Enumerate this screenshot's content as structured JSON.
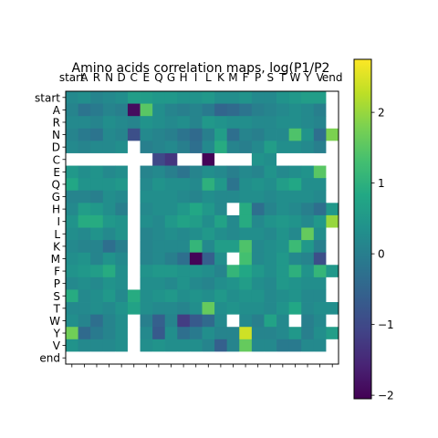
{
  "chart_data": {
    "type": "heatmap",
    "title": "Amino acids correlation maps, log(P1/P2",
    "row_labels": [
      "start",
      "A",
      "R",
      "N",
      "D",
      "C",
      "E",
      "Q",
      "G",
      "H",
      "I",
      "L",
      "K",
      "M",
      "F",
      "P",
      "S",
      "T",
      "W",
      "Y",
      "V",
      "end"
    ],
    "col_labels": [
      "start",
      "A",
      "R",
      "N",
      "D",
      "C",
      "E",
      "Q",
      "G",
      "H",
      "I",
      "L",
      "K",
      "M",
      "F",
      "P",
      "S",
      "T",
      "W",
      "Y",
      "V",
      "end"
    ],
    "colorbar": {
      "range": [
        -2.05,
        2.75
      ],
      "ticks": [
        -2,
        -1,
        0,
        1,
        2
      ],
      "tick_labels": [
        "−2",
        "−1",
        "0",
        "1",
        "2"
      ],
      "colormap": "viridis"
    },
    "missing_value_color": "#ffffff",
    "values": [
      [
        0.2,
        0.3,
        0.1,
        0.2,
        0.3,
        0.6,
        0.6,
        0.5,
        0.5,
        0.4,
        0.4,
        0.5,
        0.3,
        0.3,
        0.4,
        0.2,
        0.2,
        0.4,
        0.5,
        0.6,
        0.6,
        null
      ],
      [
        0.1,
        -0.2,
        -0.1,
        0.1,
        0.0,
        -1.9,
        1.5,
        0.3,
        0.1,
        0.0,
        0.1,
        -0.1,
        -0.5,
        -0.4,
        -0.2,
        0.0,
        0.1,
        0.2,
        0.3,
        0.2,
        0.0,
        null
      ],
      [
        0.2,
        0.2,
        0.1,
        0.3,
        0.2,
        0.1,
        0.4,
        0.3,
        0.2,
        0.3,
        0.1,
        0.5,
        0.4,
        0.3,
        0.3,
        0.2,
        0.2,
        0.3,
        0.3,
        0.2,
        0.1,
        null
      ],
      [
        0.1,
        -0.1,
        -0.2,
        0.2,
        0.1,
        -0.9,
        0.2,
        0.1,
        0.0,
        -0.2,
        -0.4,
        0.0,
        0.6,
        -0.3,
        0.1,
        0.0,
        0.2,
        0.2,
        1.4,
        0.4,
        -0.3,
        1.8
      ],
      [
        0.2,
        0.1,
        0.2,
        0.2,
        0.3,
        null,
        0.0,
        0.1,
        0.2,
        0.0,
        -0.3,
        0.2,
        0.9,
        0.1,
        0.0,
        0.2,
        0.6,
        0.3,
        0.3,
        0.2,
        0.0,
        null
      ],
      [
        null,
        null,
        null,
        null,
        null,
        null,
        null,
        -1.0,
        -1.3,
        null,
        null,
        -2.0,
        null,
        null,
        null,
        0.4,
        0.3,
        null,
        null,
        null,
        null,
        null
      ],
      [
        0.5,
        0.3,
        0.4,
        0.2,
        0.3,
        null,
        0.1,
        0.2,
        0.0,
        -0.2,
        0.1,
        0.3,
        0.2,
        0.0,
        0.2,
        0.1,
        0.4,
        0.2,
        0.3,
        0.4,
        1.5,
        null
      ],
      [
        0.8,
        0.4,
        0.4,
        0.4,
        0.5,
        null,
        0.2,
        0.4,
        0.3,
        0.3,
        0.2,
        1.0,
        0.5,
        -0.2,
        0.3,
        0.4,
        0.3,
        0.6,
        0.8,
        0.3,
        0.3,
        null
      ],
      [
        0.1,
        0.1,
        0.0,
        0.3,
        0.2,
        null,
        0.3,
        0.3,
        0.3,
        0.2,
        0.1,
        0.3,
        0.2,
        0.2,
        0.3,
        0.3,
        0.2,
        0.3,
        0.3,
        0.3,
        0.2,
        null
      ],
      [
        0.2,
        0.6,
        0.5,
        0.3,
        0.0,
        null,
        0.2,
        0.3,
        0.3,
        0.5,
        0.8,
        0.5,
        0.2,
        null,
        0.9,
        -0.3,
        0.1,
        0.3,
        0.2,
        0.0,
        -0.3,
        0.5
      ],
      [
        0.4,
        0.9,
        0.9,
        0.5,
        0.4,
        null,
        0.3,
        0.2,
        0.5,
        0.7,
        0.6,
        0.3,
        0.7,
        0.2,
        0.9,
        0.2,
        0.4,
        0.5,
        0.4,
        0.2,
        0.5,
        2.0
      ],
      [
        0.3,
        0.2,
        0.4,
        0.2,
        0.4,
        null,
        0.1,
        0.2,
        0.3,
        0.2,
        0.3,
        0.5,
        0.3,
        0.2,
        0.3,
        0.3,
        0.2,
        0.4,
        0.2,
        1.6,
        0.3,
        null
      ],
      [
        0.2,
        0.1,
        0.1,
        -0.3,
        0.0,
        null,
        0.1,
        0.2,
        0.2,
        0.2,
        1.1,
        0.2,
        0.6,
        0.6,
        1.4,
        0.2,
        0.3,
        0.4,
        1.2,
        0.5,
        0.0,
        null
      ],
      [
        0.3,
        0.4,
        0.1,
        0.4,
        0.2,
        null,
        0.1,
        0.2,
        0.0,
        -0.3,
        -2.0,
        -0.6,
        0.3,
        null,
        1.3,
        0.2,
        0.3,
        0.5,
        0.2,
        0.1,
        -0.9,
        null
      ],
      [
        0.4,
        0.5,
        0.6,
        0.9,
        0.3,
        null,
        0.4,
        0.5,
        0.5,
        0.4,
        0.4,
        0.3,
        0.1,
        1.1,
        0.8,
        0.5,
        0.3,
        0.5,
        1.0,
        0.4,
        1.1,
        0.5
      ],
      [
        0.2,
        0.3,
        0.2,
        0.4,
        0.3,
        null,
        0.3,
        0.3,
        0.2,
        0.4,
        0.2,
        0.1,
        0.3,
        0.4,
        0.6,
        0.3,
        0.2,
        0.5,
        0.4,
        0.3,
        0.3,
        null
      ],
      [
        0.9,
        0.2,
        0.3,
        0.5,
        0.2,
        0.9,
        0.3,
        0.4,
        0.5,
        0.3,
        0.4,
        0.3,
        0.5,
        0.3,
        0.4,
        0.4,
        0.2,
        0.3,
        0.4,
        0.2,
        0.2,
        null
      ],
      [
        0.2,
        0.2,
        0.3,
        0.2,
        0.4,
        0.7,
        0.3,
        0.2,
        0.2,
        0.1,
        0.3,
        1.6,
        0.3,
        0.4,
        0.3,
        0.3,
        0.2,
        0.4,
        0.8,
        0.2,
        0.3,
        0.3
      ],
      [
        0.3,
        0.1,
        -0.3,
        0.1,
        0.3,
        null,
        0.0,
        -0.6,
        0.1,
        -1.2,
        -0.7,
        -0.4,
        0.2,
        null,
        0.2,
        0.0,
        0.7,
        0.2,
        null,
        0.0,
        0.2,
        null
      ],
      [
        1.7,
        -0.4,
        -0.1,
        0.1,
        0.3,
        null,
        0.2,
        -0.7,
        0.3,
        -0.3,
        -0.1,
        0.3,
        0.1,
        0.1,
        2.4,
        0.1,
        0.1,
        0.2,
        0.5,
        0.0,
        0.3,
        0.6
      ],
      [
        0.4,
        0.2,
        0.2,
        0.2,
        0.3,
        null,
        0.3,
        0.4,
        0.3,
        0.3,
        0.3,
        0.1,
        -0.6,
        0.1,
        1.6,
        0.2,
        0.2,
        -0.1,
        -0.1,
        0.2,
        0.2,
        null
      ],
      [
        null,
        null,
        null,
        null,
        null,
        null,
        null,
        null,
        null,
        null,
        null,
        null,
        null,
        null,
        null,
        null,
        null,
        null,
        null,
        null,
        null,
        null
      ]
    ]
  }
}
